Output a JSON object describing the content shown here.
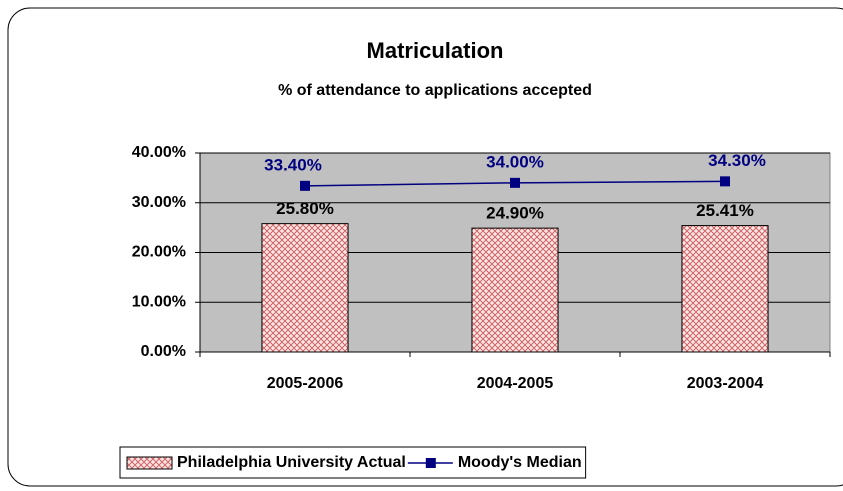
{
  "chart_data": {
    "type": "bar",
    "title": "Matriculation",
    "subtitle": "% of attendance to applications accepted",
    "categories": [
      "2005-2006",
      "2004-2005",
      "2003-2004"
    ],
    "series": [
      {
        "name": "Philadelphia University Actual",
        "type": "bar",
        "color": "#cc6666",
        "values": [
          25.8,
          24.9,
          25.41
        ],
        "value_labels": [
          "25.80%",
          "24.90%",
          "25.41%"
        ]
      },
      {
        "name": "Moody's Median",
        "type": "line",
        "color": "#000080",
        "values": [
          33.4,
          34.0,
          34.3
        ],
        "value_labels": [
          "33.40%",
          "34.00%",
          "34.30%"
        ]
      }
    ],
    "ylim": [
      0,
      40
    ],
    "yticks": [
      {
        "value": 0,
        "label": "0.00%"
      },
      {
        "value": 10,
        "label": "10.00%"
      },
      {
        "value": 20,
        "label": "20.00%"
      },
      {
        "value": 30,
        "label": "30.00%"
      },
      {
        "value": 40,
        "label": "40.00%"
      }
    ],
    "grid": true,
    "legend": "bottom"
  }
}
